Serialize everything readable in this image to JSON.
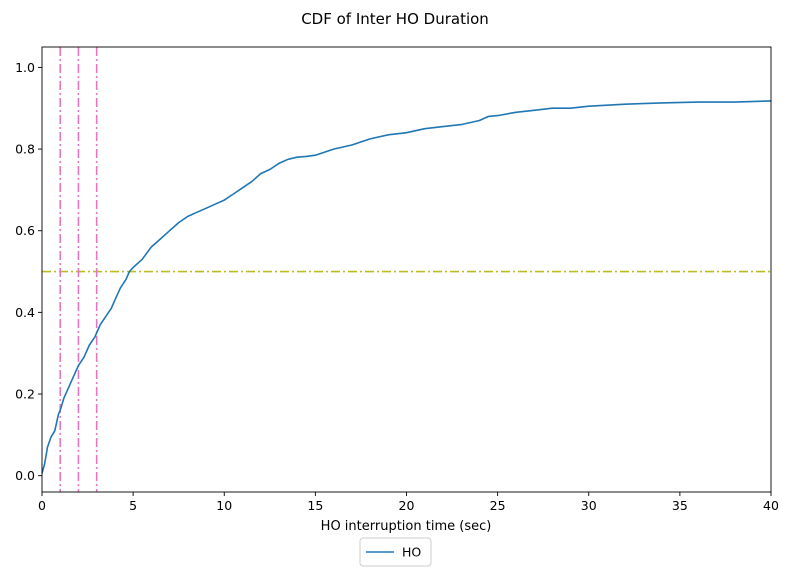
{
  "chart_data": {
    "type": "line",
    "title": "CDF of Inter HO Duration",
    "xlabel": "HO interruption time (sec)",
    "ylabel": "",
    "xlim": [
      0,
      40
    ],
    "ylim": [
      -0.04,
      1.05
    ],
    "xticks": [
      "0",
      "5",
      "10",
      "15",
      "20",
      "25",
      "30",
      "35",
      "40"
    ],
    "yticks": [
      "0.0",
      "0.2",
      "0.4",
      "0.6",
      "0.8",
      "1.0"
    ],
    "grid": false,
    "legend_position": "below-center",
    "series": [
      {
        "name": "HO",
        "color": "#1f77b4",
        "x": [
          0,
          0.15,
          0.3,
          0.5,
          0.7,
          0.9,
          1.0,
          1.2,
          1.5,
          1.8,
          2.0,
          2.3,
          2.6,
          2.9,
          3.2,
          3.5,
          3.8,
          4.0,
          4.3,
          4.6,
          4.8,
          5.0,
          5.5,
          6.0,
          6.5,
          7.0,
          7.5,
          8.0,
          8.5,
          9.0,
          9.5,
          10.0,
          10.5,
          11.0,
          11.5,
          12.0,
          12.5,
          13.0,
          13.5,
          14.0,
          14.5,
          15.0,
          16.0,
          17.0,
          18.0,
          19.0,
          20.0,
          21.0,
          22.0,
          23.0,
          24.0,
          24.5,
          25.0,
          26.0,
          27.0,
          28.0,
          29.0,
          30.0,
          32.0,
          34.0,
          36.0,
          38.0,
          40.0
        ],
        "y": [
          0.005,
          0.03,
          0.07,
          0.095,
          0.11,
          0.15,
          0.16,
          0.19,
          0.22,
          0.25,
          0.27,
          0.29,
          0.32,
          0.34,
          0.37,
          0.39,
          0.41,
          0.43,
          0.46,
          0.48,
          0.5,
          0.51,
          0.53,
          0.56,
          0.58,
          0.6,
          0.62,
          0.635,
          0.645,
          0.655,
          0.665,
          0.675,
          0.69,
          0.705,
          0.72,
          0.74,
          0.75,
          0.765,
          0.775,
          0.78,
          0.782,
          0.785,
          0.8,
          0.81,
          0.825,
          0.835,
          0.84,
          0.85,
          0.855,
          0.86,
          0.87,
          0.88,
          0.882,
          0.89,
          0.895,
          0.9,
          0.9,
          0.905,
          0.91,
          0.913,
          0.915,
          0.915,
          0.918
        ]
      }
    ],
    "vlines": {
      "color": "#e377c2",
      "x": [
        1,
        2,
        3
      ]
    },
    "hline": {
      "color": "#bcbd22",
      "y": 0.5
    }
  }
}
